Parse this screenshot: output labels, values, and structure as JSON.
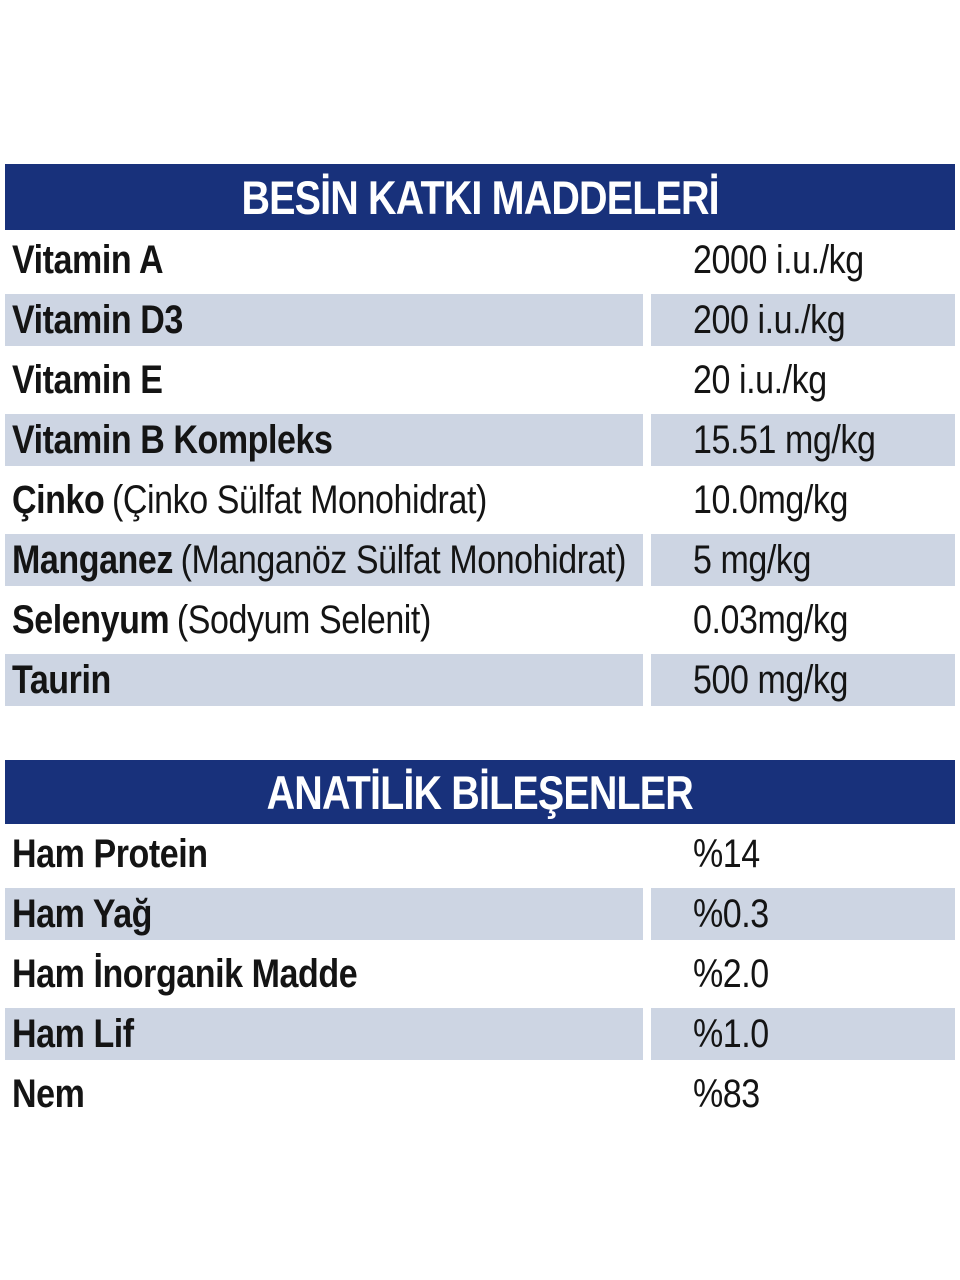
{
  "page": {
    "type_hint": "pet-food nutrition label",
    "colors": {
      "banner_navy": "#18317b",
      "banner_text": "#ffffff",
      "row_shade": "#cdd5e3",
      "text": "#141414",
      "background": "#ffffff"
    }
  },
  "tables": [
    {
      "title": "BESİN KATKI MADDELERİ",
      "rows": [
        {
          "name": "Vitamin A",
          "detail": "",
          "value": "2000 i.u./kg"
        },
        {
          "name": "Vitamin D3",
          "detail": "",
          "value": "200 i.u./kg"
        },
        {
          "name": "Vitamin E",
          "detail": "",
          "value": "20 i.u./kg"
        },
        {
          "name": "Vitamin B Kompleks",
          "detail": "",
          "value": "15.51 mg/kg"
        },
        {
          "name": "Çinko",
          "detail": "(Çinko Sülfat Monohidrat)",
          "value": "10.0mg/kg"
        },
        {
          "name": "Manganez",
          "detail": "(Manganöz Sülfat Monohidrat)",
          "value": "5 mg/kg"
        },
        {
          "name": "Selenyum",
          "detail": "(Sodyum Selenit)",
          "value": "0.03mg/kg"
        },
        {
          "name": "Taurin",
          "detail": "",
          "value": "500 mg/kg"
        }
      ]
    },
    {
      "title": "ANATİLİK BİLEŞENLER",
      "rows": [
        {
          "name": "Ham Protein",
          "detail": "",
          "value": "%14"
        },
        {
          "name": "Ham Yağ",
          "detail": "",
          "value": "%0.3"
        },
        {
          "name": "Ham İnorganik Madde",
          "detail": "",
          "value": "%2.0"
        },
        {
          "name": "Ham Lif",
          "detail": "",
          "value": "%1.0"
        },
        {
          "name": "Nem",
          "detail": "",
          "value": "%83"
        }
      ]
    }
  ]
}
